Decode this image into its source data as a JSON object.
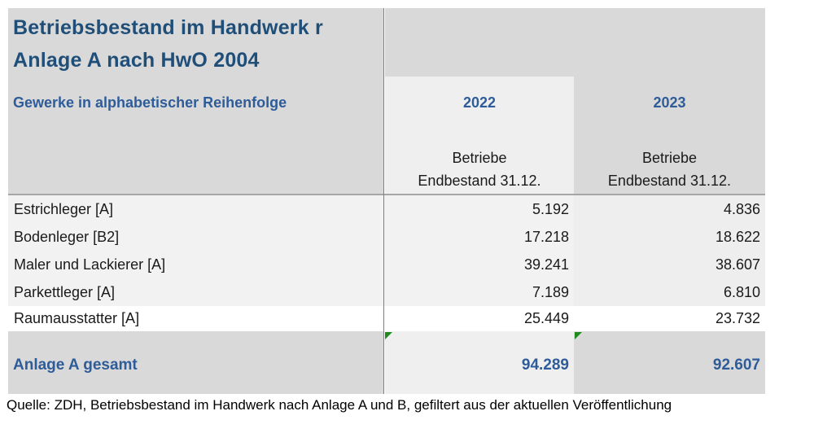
{
  "title_line1": "Betriebsbestand im Handwerk  r",
  "title_line2": "Anlage A  nach HwO 2004",
  "subtitle": "Gewerke in alphabetischer Reihenfolge",
  "columns": [
    {
      "year": "2022",
      "header_line1": "Betriebe",
      "header_line2": "Endbestand 31.12."
    },
    {
      "year": "2023",
      "header_line1": "Betriebe",
      "header_line2": "Endbestand 31.12."
    }
  ],
  "rows": [
    {
      "label": "Estrichleger [A]",
      "v2022": "5.192",
      "v2023": "4.836"
    },
    {
      "label": "Bodenleger [B2]",
      "v2022": "17.218",
      "v2023": "18.622"
    },
    {
      "label": "Maler und Lackierer [A]",
      "v2022": "39.241",
      "v2023": "38.607"
    },
    {
      "label": "Parkettleger [A]",
      "v2022": "7.189",
      "v2023": "6.810"
    },
    {
      "label": "Raumausstatter [A]",
      "v2022": "25.449",
      "v2023": "23.732"
    }
  ],
  "total": {
    "label": "Anlage A gesamt",
    "v2022": "94.289",
    "v2023": "92.607"
  },
  "source": "Quelle: ZDH, Betriebsbestand im Handwerk nach Anlage A und B, gefiltert aus der aktuellen Veröffentlichung",
  "colors": {
    "title": "#1f4e79",
    "accent": "#2e5c99",
    "header_bg": "#d9d9d9",
    "row_bg": "#f2f2f2",
    "marker": "#1e8a1e"
  }
}
